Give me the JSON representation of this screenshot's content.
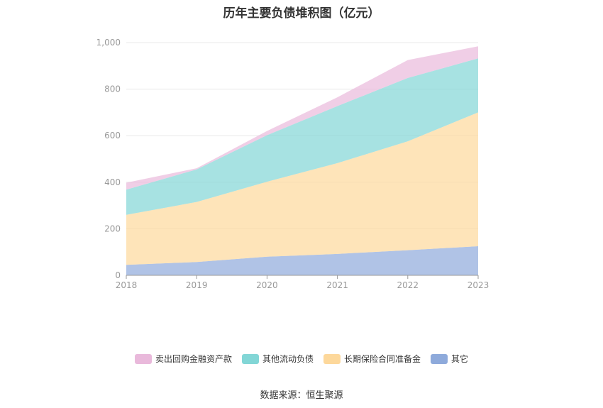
{
  "chart_data": {
    "type": "area",
    "stacked": true,
    "title": "历年主要负债堆积图（亿元）",
    "x": [
      "2018",
      "2019",
      "2020",
      "2021",
      "2022",
      "2023"
    ],
    "ylim": [
      0,
      1000
    ],
    "yticks": [
      0,
      200,
      400,
      600,
      800,
      1000
    ],
    "ytick_labels": [
      "0",
      "200",
      "400",
      "600",
      "800",
      "1,000"
    ],
    "grid": true,
    "legend_position": "bottom",
    "series": [
      {
        "name": "其它",
        "color": "#8EAADB",
        "values": [
          45,
          57,
          80,
          92,
          108,
          125
        ]
      },
      {
        "name": "长期保险合同准备金",
        "color": "#FDD89B",
        "values": [
          215,
          258,
          322,
          390,
          468,
          575
        ]
      },
      {
        "name": "其他流动负债",
        "color": "#82D6D6",
        "values": [
          108,
          140,
          200,
          245,
          272,
          232
        ]
      },
      {
        "name": "卖出回购金融资产款",
        "color": "#E9B9DB",
        "values": [
          30,
          5,
          18,
          38,
          77,
          52
        ]
      }
    ]
  },
  "legend_order": [
    3,
    2,
    1,
    0
  ],
  "source": "数据来源：恒生聚源"
}
